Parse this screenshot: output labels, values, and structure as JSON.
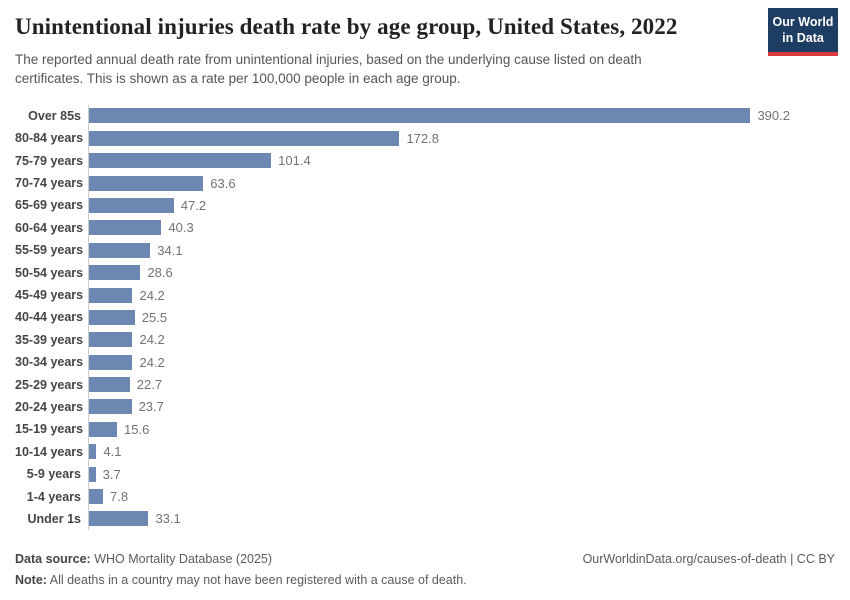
{
  "header": {
    "title": "Unintentional injuries death rate by age group, United States, 2022",
    "subtitle": "The reported annual death rate from unintentional injuries, based on the underlying cause listed on death certificates. This is shown as a rate per 100,000 people in each age group.",
    "logo_line1": "Our World",
    "logo_line2": "in Data"
  },
  "chart_data": {
    "type": "bar",
    "orientation": "horizontal",
    "title": "Unintentional injuries death rate by age group, United States, 2022",
    "unit": "deaths per 100,000 people",
    "xlim": [
      0,
      390.2
    ],
    "grid": false,
    "bar_color": "#6c87b2",
    "categories": [
      "Over 85s",
      "80-84 years",
      "75-79 years",
      "70-74 years",
      "65-69 years",
      "60-64 years",
      "55-59 years",
      "50-54 years",
      "45-49 years",
      "40-44 years",
      "35-39 years",
      "30-34 years",
      "25-29 years",
      "20-24 years",
      "15-19 years",
      "10-14 years",
      "5-9 years",
      "1-4 years",
      "Under 1s"
    ],
    "values": [
      390.2,
      172.8,
      101.4,
      63.6,
      47.2,
      40.3,
      34.1,
      28.6,
      24.2,
      25.5,
      24.2,
      24.2,
      22.7,
      23.7,
      15.6,
      4.1,
      3.7,
      7.8,
      33.1
    ]
  },
  "footer": {
    "datasource_label": "Data source:",
    "datasource_text": " WHO Mortality Database (2025)",
    "note_label": "Note:",
    "note_text": " All deaths in a country may not have been registered with a cause of death.",
    "link": "OurWorldinData.org/causes-of-death | CC BY"
  }
}
